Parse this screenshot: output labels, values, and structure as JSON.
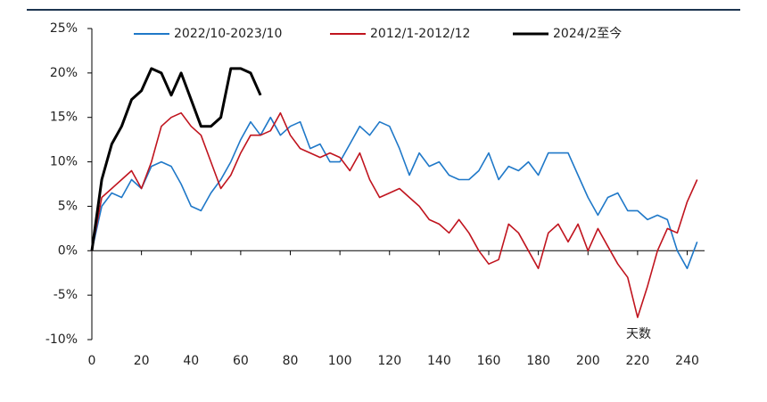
{
  "chart_data": {
    "type": "line",
    "annotations": [
      "天数"
    ],
    "x": [
      0,
      4,
      8,
      12,
      16,
      20,
      24,
      28,
      32,
      36,
      40,
      44,
      48,
      52,
      56,
      60,
      64,
      68,
      72,
      76,
      80,
      84,
      88,
      92,
      96,
      100,
      104,
      108,
      112,
      116,
      120,
      124,
      128,
      132,
      136,
      140,
      144,
      148,
      152,
      156,
      160,
      164,
      168,
      172,
      176,
      180,
      184,
      188,
      192,
      196,
      200,
      204,
      208,
      212,
      216,
      220,
      224,
      228,
      232,
      236,
      240,
      244
    ],
    "series": [
      {
        "name": "2022/10-2023/10",
        "color": "#1f78c8",
        "values": [
          0,
          5,
          6.5,
          6,
          8,
          7,
          9.5,
          10,
          9.5,
          7.5,
          5,
          4.5,
          6.5,
          8,
          10,
          12.5,
          14.5,
          13,
          15,
          13,
          14,
          14.5,
          11.5,
          12,
          10,
          10,
          12,
          14,
          13,
          14.5,
          14,
          11.5,
          8.5,
          11,
          9.5,
          10,
          8.5,
          8,
          8,
          9,
          11,
          8,
          9.5,
          9,
          10,
          8.5,
          11,
          11,
          11,
          8.5,
          6,
          4,
          6,
          6.5,
          4.5,
          4.5,
          3.5,
          4,
          3.5,
          0,
          -2,
          1
        ]
      },
      {
        "name": "2012/1-2012/12",
        "color": "#c0141e",
        "values": [
          0,
          6,
          7,
          8,
          9,
          7,
          10,
          14,
          15,
          15.5,
          14,
          13,
          10,
          7,
          8.5,
          11,
          13,
          13,
          13.5,
          15.5,
          13,
          11.5,
          11,
          10.5,
          11,
          10.5,
          9,
          11,
          8,
          6,
          6.5,
          7,
          6,
          5,
          3.5,
          3,
          2,
          3.5,
          2,
          0,
          -1.5,
          -1,
          3,
          2,
          0,
          -2,
          2,
          3,
          1,
          3,
          0,
          2.5,
          0.5,
          -1.5,
          -3,
          -7.5,
          -4,
          0,
          2.5,
          2,
          5.5,
          8
        ]
      },
      {
        "name": "2024/2至今",
        "color": "#000000",
        "values": [
          0,
          8,
          12,
          14,
          17,
          18,
          20.5,
          20,
          17.5,
          20,
          17,
          14,
          14,
          15,
          20.5,
          20.5,
          20,
          17.5,
          null,
          null,
          null,
          null,
          null,
          null,
          null,
          null,
          null,
          null,
          null,
          null,
          null,
          null,
          null,
          null,
          null,
          null,
          null,
          null,
          null,
          null,
          null,
          null,
          null,
          null,
          null,
          null,
          null,
          null,
          null,
          null,
          null,
          null,
          null,
          null,
          null,
          null,
          null,
          null,
          null,
          null,
          null,
          null
        ]
      }
    ],
    "xlim": [
      0,
      247
    ],
    "ylim": [
      -10,
      25
    ],
    "xticks": [
      0,
      20,
      40,
      60,
      80,
      100,
      120,
      140,
      160,
      180,
      200,
      220,
      240
    ],
    "yticks": [
      {
        "value": -10,
        "label": "-10%"
      },
      {
        "value": -5,
        "label": "-5%"
      },
      {
        "value": 0,
        "label": "0%"
      },
      {
        "value": 5,
        "label": "5%"
      },
      {
        "value": 10,
        "label": "10%"
      },
      {
        "value": 15,
        "label": "15%"
      },
      {
        "value": 20,
        "label": "20%"
      },
      {
        "value": 25,
        "label": "25%"
      }
    ]
  }
}
